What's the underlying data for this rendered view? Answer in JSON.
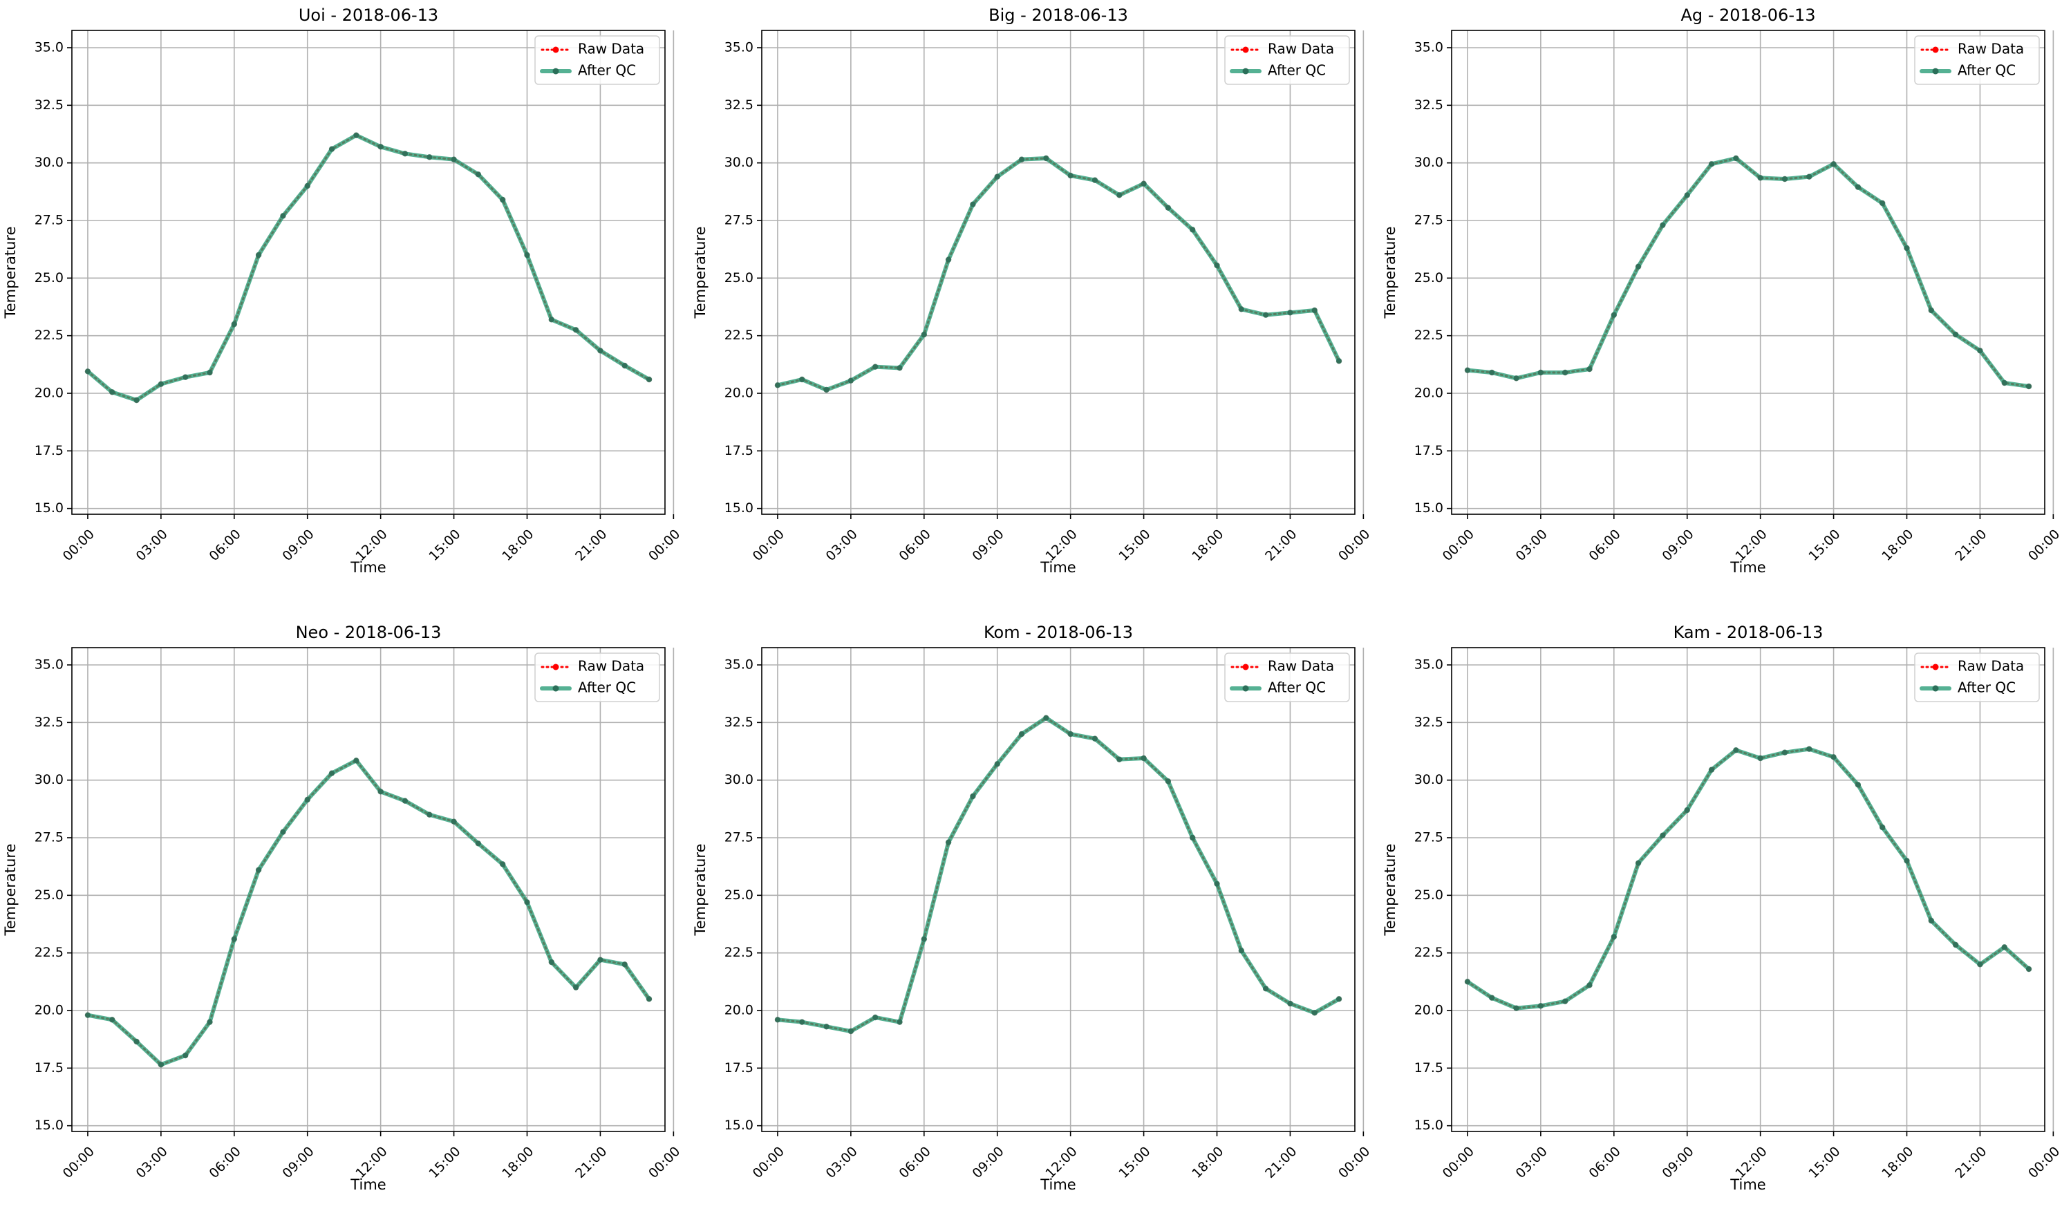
{
  "chart_data": [
    {
      "type": "line",
      "title": "Uoi - 2018-06-13",
      "xlabel": "Time",
      "ylabel": "Temperature",
      "ylim": [
        14.75,
        35.75
      ],
      "xlim": [
        -0.65,
        23.65
      ],
      "xticks": [
        "00:00",
        "03:00",
        "06:00",
        "09:00",
        "12:00",
        "15:00",
        "18:00",
        "21:00",
        "00:00"
      ],
      "yticks": [
        "15.0",
        "17.5",
        "20.0",
        "22.5",
        "25.0",
        "27.5",
        "30.0",
        "32.5",
        "35.0"
      ],
      "grid": true,
      "legend": "top-right",
      "x_hours": [
        0,
        1,
        2,
        3,
        4,
        5,
        6,
        7,
        8,
        9,
        10,
        11,
        12,
        13,
        14,
        15,
        16,
        17,
        18,
        19,
        20,
        21,
        22,
        23
      ],
      "series": [
        {
          "name": "Raw Data",
          "color": "#ff0000",
          "values": [
            20.95,
            20.05,
            19.7,
            20.4,
            20.7,
            20.9,
            23.0,
            26.0,
            27.7,
            29.0,
            30.6,
            31.2,
            30.7,
            30.4,
            30.25,
            30.15,
            29.5,
            28.4,
            26.0,
            23.2,
            22.75,
            21.85,
            21.2,
            20.6
          ]
        },
        {
          "name": "After QC",
          "color": "#2a9d78",
          "values": [
            20.95,
            20.05,
            19.7,
            20.4,
            20.7,
            20.9,
            23.0,
            26.0,
            27.7,
            29.0,
            30.6,
            31.2,
            30.7,
            30.4,
            30.25,
            30.15,
            29.5,
            28.4,
            26.0,
            23.2,
            22.75,
            21.85,
            21.2,
            20.6
          ]
        }
      ]
    },
    {
      "type": "line",
      "title": "Big - 2018-06-13",
      "xlabel": "Time",
      "ylabel": "Temperature",
      "ylim": [
        14.75,
        35.75
      ],
      "xlim": [
        -0.65,
        23.65
      ],
      "xticks": [
        "00:00",
        "03:00",
        "06:00",
        "09:00",
        "12:00",
        "15:00",
        "18:00",
        "21:00",
        "00:00"
      ],
      "yticks": [
        "15.0",
        "17.5",
        "20.0",
        "22.5",
        "25.0",
        "27.5",
        "30.0",
        "32.5",
        "35.0"
      ],
      "grid": true,
      "legend": "top-right",
      "x_hours": [
        0,
        1,
        2,
        3,
        4,
        5,
        6,
        7,
        8,
        9,
        10,
        11,
        12,
        13,
        14,
        15,
        16,
        17,
        18,
        19,
        20,
        21,
        22,
        23
      ],
      "series": [
        {
          "name": "Raw Data",
          "color": "#ff0000",
          "values": [
            20.35,
            20.6,
            20.15,
            20.55,
            21.15,
            21.1,
            22.55,
            25.8,
            28.2,
            29.4,
            30.15,
            30.2,
            29.45,
            29.25,
            28.6,
            29.1,
            28.05,
            27.1,
            25.55,
            23.65,
            23.4,
            23.5,
            23.6,
            21.4
          ]
        },
        {
          "name": "After QC",
          "color": "#2a9d78",
          "values": [
            20.35,
            20.6,
            20.15,
            20.55,
            21.15,
            21.1,
            22.55,
            25.8,
            28.2,
            29.4,
            30.15,
            30.2,
            29.45,
            29.25,
            28.6,
            29.1,
            28.05,
            27.1,
            25.55,
            23.65,
            23.4,
            23.5,
            23.6,
            21.4
          ]
        }
      ]
    },
    {
      "type": "line",
      "title": "Ag - 2018-06-13",
      "xlabel": "Time",
      "ylabel": "Temperature",
      "ylim": [
        14.75,
        35.75
      ],
      "xlim": [
        -0.65,
        23.65
      ],
      "xticks": [
        "00:00",
        "03:00",
        "06:00",
        "09:00",
        "12:00",
        "15:00",
        "18:00",
        "21:00",
        "00:00"
      ],
      "yticks": [
        "15.0",
        "17.5",
        "20.0",
        "22.5",
        "25.0",
        "27.5",
        "30.0",
        "32.5",
        "35.0"
      ],
      "grid": true,
      "legend": "top-right",
      "x_hours": [
        0,
        1,
        2,
        3,
        4,
        5,
        6,
        7,
        8,
        9,
        10,
        11,
        12,
        13,
        14,
        15,
        16,
        17,
        18,
        19,
        20,
        21,
        22,
        23
      ],
      "series": [
        {
          "name": "Raw Data",
          "color": "#ff0000",
          "values": [
            21.0,
            20.9,
            20.65,
            20.9,
            20.9,
            21.05,
            23.4,
            25.5,
            27.3,
            28.6,
            29.95,
            30.2,
            29.35,
            29.3,
            29.4,
            29.95,
            28.95,
            28.25,
            26.3,
            23.6,
            22.55,
            21.85,
            20.45,
            20.3
          ]
        },
        {
          "name": "After QC",
          "color": "#2a9d78",
          "values": [
            21.0,
            20.9,
            20.65,
            20.9,
            20.9,
            21.05,
            23.4,
            25.5,
            27.3,
            28.6,
            29.95,
            30.2,
            29.35,
            29.3,
            29.4,
            29.95,
            28.95,
            28.25,
            26.3,
            23.6,
            22.55,
            21.85,
            20.45,
            20.3
          ]
        }
      ]
    },
    {
      "type": "line",
      "title": "Neo - 2018-06-13",
      "xlabel": "Time",
      "ylabel": "Temperature",
      "ylim": [
        14.75,
        35.75
      ],
      "xlim": [
        -0.65,
        23.65
      ],
      "xticks": [
        "00:00",
        "03:00",
        "06:00",
        "09:00",
        "12:00",
        "15:00",
        "18:00",
        "21:00",
        "00:00"
      ],
      "yticks": [
        "15.0",
        "17.5",
        "20.0",
        "22.5",
        "25.0",
        "27.5",
        "30.0",
        "32.5",
        "35.0"
      ],
      "grid": true,
      "legend": "top-right",
      "x_hours": [
        0,
        1,
        2,
        3,
        4,
        5,
        6,
        7,
        8,
        9,
        10,
        11,
        12,
        13,
        14,
        15,
        16,
        17,
        18,
        19,
        20,
        21,
        22,
        23
      ],
      "series": [
        {
          "name": "Raw Data",
          "color": "#ff0000",
          "values": [
            19.8,
            19.6,
            18.65,
            17.65,
            18.05,
            19.5,
            23.1,
            26.1,
            27.75,
            29.15,
            30.3,
            30.85,
            29.5,
            29.1,
            28.5,
            28.2,
            27.25,
            26.35,
            24.7,
            22.1,
            21.0,
            22.2,
            22.0,
            20.5
          ]
        },
        {
          "name": "After QC",
          "color": "#2a9d78",
          "values": [
            19.8,
            19.6,
            18.65,
            17.65,
            18.05,
            19.5,
            23.1,
            26.1,
            27.75,
            29.15,
            30.3,
            30.85,
            29.5,
            29.1,
            28.5,
            28.2,
            27.25,
            26.35,
            24.7,
            22.1,
            21.0,
            22.2,
            22.0,
            20.5
          ]
        }
      ]
    },
    {
      "type": "line",
      "title": "Kom - 2018-06-13",
      "xlabel": "Time",
      "ylabel": "Temperature",
      "ylim": [
        14.75,
        35.75
      ],
      "xlim": [
        -0.65,
        23.65
      ],
      "xticks": [
        "00:00",
        "03:00",
        "06:00",
        "09:00",
        "12:00",
        "15:00",
        "18:00",
        "21:00",
        "00:00"
      ],
      "yticks": [
        "15.0",
        "17.5",
        "20.0",
        "22.5",
        "25.0",
        "27.5",
        "30.0",
        "32.5",
        "35.0"
      ],
      "grid": true,
      "legend": "top-right",
      "x_hours": [
        0,
        1,
        2,
        3,
        4,
        5,
        6,
        7,
        8,
        9,
        10,
        11,
        12,
        13,
        14,
        15,
        16,
        17,
        18,
        19,
        20,
        21,
        22,
        23
      ],
      "series": [
        {
          "name": "Raw Data",
          "color": "#ff0000",
          "values": [
            19.6,
            19.5,
            19.3,
            19.1,
            19.7,
            19.5,
            23.1,
            27.3,
            29.3,
            30.7,
            32.0,
            32.7,
            32.0,
            31.8,
            30.9,
            30.95,
            29.95,
            27.5,
            25.5,
            22.6,
            20.95,
            20.3,
            19.9,
            20.5
          ]
        },
        {
          "name": "After QC",
          "color": "#2a9d78",
          "values": [
            19.6,
            19.5,
            19.3,
            19.1,
            19.7,
            19.5,
            23.1,
            27.3,
            29.3,
            30.7,
            32.0,
            32.7,
            32.0,
            31.8,
            30.9,
            30.95,
            29.95,
            27.5,
            25.5,
            22.6,
            20.95,
            20.3,
            19.9,
            20.5
          ]
        }
      ]
    },
    {
      "type": "line",
      "title": "Kam - 2018-06-13",
      "xlabel": "Time",
      "ylabel": "Temperature",
      "ylim": [
        14.75,
        35.75
      ],
      "xlim": [
        -0.65,
        23.65
      ],
      "xticks": [
        "00:00",
        "03:00",
        "06:00",
        "09:00",
        "12:00",
        "15:00",
        "18:00",
        "21:00",
        "00:00"
      ],
      "yticks": [
        "15.0",
        "17.5",
        "20.0",
        "22.5",
        "25.0",
        "27.5",
        "30.0",
        "32.5",
        "35.0"
      ],
      "grid": true,
      "legend": "top-right",
      "x_hours": [
        0,
        1,
        2,
        3,
        4,
        5,
        6,
        7,
        8,
        9,
        10,
        11,
        12,
        13,
        14,
        15,
        16,
        17,
        18,
        19,
        20,
        21,
        22,
        23
      ],
      "series": [
        {
          "name": "Raw Data",
          "color": "#ff0000",
          "values": [
            21.25,
            20.55,
            20.1,
            20.2,
            20.4,
            21.1,
            23.2,
            26.4,
            27.6,
            28.7,
            30.45,
            31.3,
            30.95,
            31.2,
            31.35,
            31.0,
            29.8,
            27.95,
            26.5,
            23.9,
            22.85,
            22.0,
            22.75,
            21.8
          ]
        },
        {
          "name": "After QC",
          "color": "#2a9d78",
          "values": [
            21.25,
            20.55,
            20.1,
            20.2,
            20.4,
            21.1,
            23.2,
            26.4,
            27.6,
            28.7,
            30.45,
            31.3,
            30.95,
            31.2,
            31.35,
            31.0,
            29.8,
            27.95,
            26.5,
            23.9,
            22.85,
            22.0,
            22.75,
            21.8
          ]
        }
      ]
    }
  ]
}
